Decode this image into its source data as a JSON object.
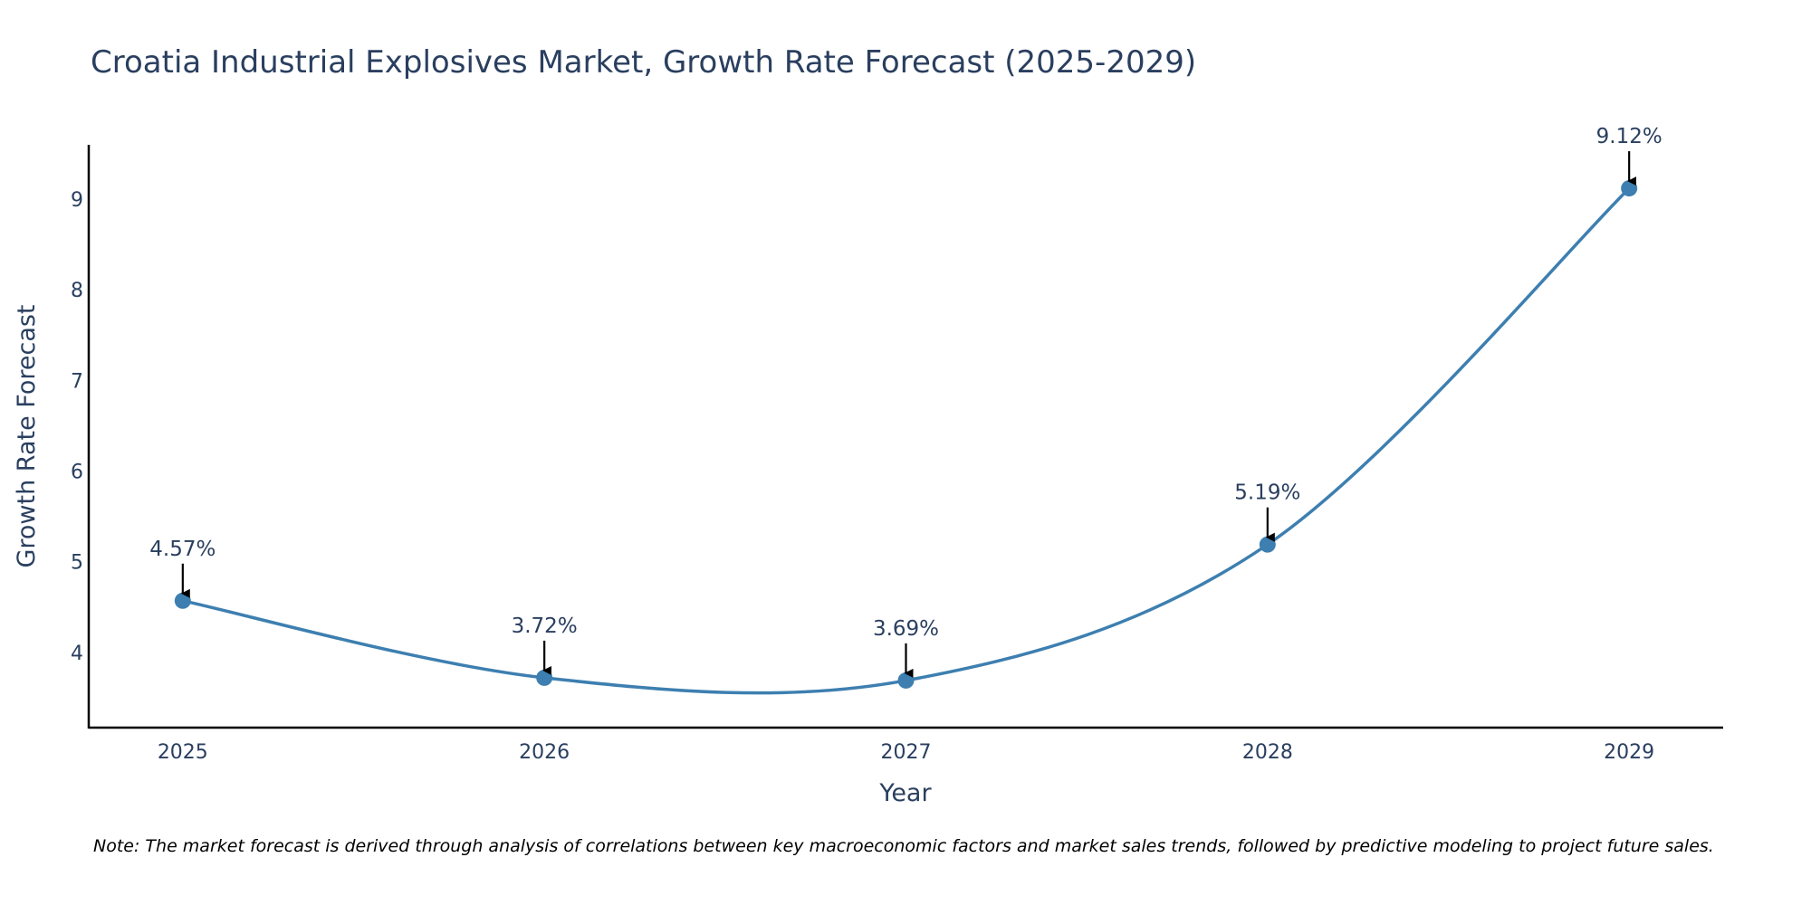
{
  "chart_data": {
    "type": "line",
    "title": "Croatia Industrial Explosives Market, Growth Rate Forecast (2025-2029)",
    "xlabel": "Year",
    "ylabel": "Growth Rate Forecast",
    "categories": [
      "2025",
      "2026",
      "2027",
      "2028",
      "2029"
    ],
    "x": [
      2025,
      2026,
      2027,
      2028,
      2029
    ],
    "values": [
      4.57,
      3.72,
      3.69,
      5.19,
      9.12
    ],
    "data_labels": [
      "4.57%",
      "3.72%",
      "3.69%",
      "5.19%",
      "9.12%"
    ],
    "y_ticks": [
      4,
      5,
      6,
      7,
      8,
      9
    ],
    "y_tick_labels": [
      "4",
      "5",
      "6",
      "7",
      "8",
      "9"
    ],
    "ylim": [
      3.17,
      9.6
    ],
    "xlim": [
      2024.74,
      2029.26
    ],
    "line_shape": "spline",
    "grid": false,
    "colors": {
      "line": "#3d7fb0",
      "marker": "#3d7fb0",
      "text": "#2a3f5f",
      "axis": "#000000",
      "arrow": "#000000"
    },
    "note": "Note: The market forecast is derived through analysis of correlations between key macroeconomic factors and market sales trends, followed by predictive modeling to project future sales."
  }
}
